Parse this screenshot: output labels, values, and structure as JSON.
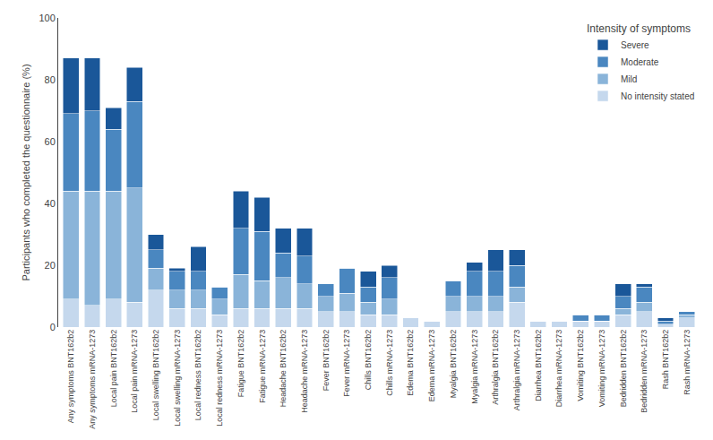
{
  "chart_data": {
    "type": "bar",
    "stacked": true,
    "categories": [
      "Any symptoms BNT162b2",
      "Any symptoms mRNA-1273",
      "Local pain BNT162b2",
      "Local pain mRNA-1273",
      "Local swelling BNT162b2",
      "Local swelling mRNA-1273",
      "Local redness BNT162b2",
      "Local redness mRNA-1273",
      "Fatigue BNT162b2",
      "Fatigue mRNA-1273",
      "Headache BNT162b2",
      "Headache mRNA-1273",
      "Fever BNT162b2",
      "Fever mRNA-1273",
      "Chills BNT162b2",
      "Chills mRNA-1273",
      "Edema BNT162b2",
      "Edema mRNA-1273",
      "Myalgia BNT162b2",
      "Myalgia mRNA-1273",
      "Arthralgia BNT162b2",
      "Arthralgia mRNA-1273",
      "Diarrhea BNT162b2",
      "Diarrhea mRNA-1273",
      "Vomiting BNT162b2",
      "Vomiting mRNA-1273",
      "Bedridden BNT162b2",
      "Bedridden mRNA-1273",
      "Rash BNT162b2",
      "Rash mRNA-1273"
    ],
    "series": [
      {
        "name": "No intensity stated",
        "color": "#c5d8ed",
        "values": [
          9,
          7,
          9,
          8,
          12,
          6,
          6,
          4,
          6,
          6,
          6,
          6,
          5,
          5,
          4,
          4,
          3,
          2,
          5,
          5,
          5,
          8,
          2,
          2,
          2,
          2,
          4,
          5,
          1,
          3
        ]
      },
      {
        "name": "Mild",
        "color": "#8ab4d9",
        "values": [
          35,
          37,
          35,
          37,
          7,
          6,
          6,
          5,
          11,
          9,
          10,
          8,
          5,
          6,
          4,
          5,
          0,
          0,
          5,
          5,
          5,
          5,
          0,
          0,
          0,
          0,
          2,
          3,
          0,
          1
        ]
      },
      {
        "name": "Moderate",
        "color": "#4a87c0",
        "values": [
          25,
          26,
          20,
          28,
          6,
          6,
          6,
          4,
          15,
          16,
          8,
          9,
          4,
          8,
          5,
          7,
          0,
          0,
          5,
          8,
          8,
          7,
          0,
          0,
          2,
          2,
          4,
          5,
          1,
          1
        ]
      },
      {
        "name": "Severe",
        "color": "#1a5799",
        "values": [
          18,
          17,
          7,
          11,
          5,
          1,
          8,
          0,
          12,
          11,
          8,
          9,
          0,
          0,
          5,
          4,
          0,
          0,
          0,
          3,
          7,
          5,
          0,
          0,
          0,
          0,
          4,
          1,
          1,
          0
        ]
      }
    ],
    "ylabel": "Participants who completed the questionnaire (%)",
    "legend_title": "Intensity of symptoms",
    "legend": "upper right",
    "ylim": [
      0,
      100
    ],
    "yticks": [
      0,
      20,
      40,
      60,
      80,
      100
    ],
    "grid": false
  }
}
